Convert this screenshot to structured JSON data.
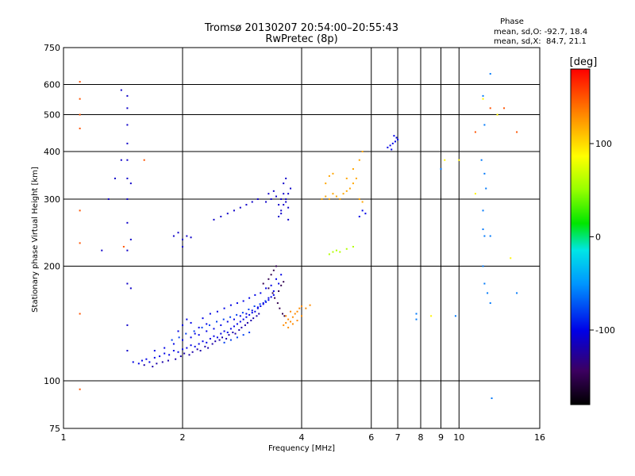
{
  "chart_data": {
    "type": "scatter",
    "title": "Tromsø 20130207 20:54:00–20:55:43",
    "subtitle": "RwPretec (8p)",
    "xlabel": "Frequency [MHz]",
    "ylabel": "Stationary phase Virtual Height [km]",
    "x_scale": "log",
    "y_scale": "log",
    "xlim": [
      1,
      16
    ],
    "ylim": [
      75,
      750
    ],
    "x_ticks": [
      1,
      2,
      4,
      6,
      8,
      10,
      16
    ],
    "x_ticks_minor": [
      7,
      9
    ],
    "y_ticks": [
      75,
      100,
      200,
      300,
      400,
      500,
      600,
      750
    ],
    "grid": true,
    "phase_box": {
      "heading": "Phase",
      "line_o": "mean, sd,O: -92.7, 18.4",
      "line_x": "mean, sd,X:  84.7, 21.1"
    },
    "colorbar": {
      "label": "[deg]",
      "range": [
        -180,
        180
      ],
      "ticks": [
        100,
        0,
        -100
      ]
    },
    "clusters_note": "approximate digitization of scatter echoes: x=frequency MHz, y=virtual height km, phase=deg",
    "clusters": [
      {
        "phase": -100,
        "points": [
          [
            1.5,
            112
          ],
          [
            1.55,
            111
          ],
          [
            1.58,
            113
          ],
          [
            1.62,
            114
          ],
          [
            1.65,
            112
          ],
          [
            1.7,
            115
          ],
          [
            1.75,
            116
          ],
          [
            1.8,
            118
          ],
          [
            1.85,
            117
          ],
          [
            1.9,
            120
          ],
          [
            1.95,
            119
          ],
          [
            2.0,
            121
          ],
          [
            2.05,
            122
          ],
          [
            2.1,
            124
          ],
          [
            2.15,
            123
          ],
          [
            2.2,
            125
          ],
          [
            2.25,
            127
          ],
          [
            2.3,
            126
          ],
          [
            2.35,
            129
          ],
          [
            2.4,
            131
          ],
          [
            2.45,
            130
          ],
          [
            2.5,
            133
          ],
          [
            2.55,
            135
          ],
          [
            2.6,
            134
          ],
          [
            2.65,
            137
          ],
          [
            2.7,
            139
          ],
          [
            2.75,
            141
          ],
          [
            2.8,
            143
          ],
          [
            2.85,
            145
          ],
          [
            2.9,
            147
          ],
          [
            2.95,
            149
          ],
          [
            3.0,
            151
          ],
          [
            3.05,
            152
          ],
          [
            3.1,
            155
          ],
          [
            3.15,
            157
          ],
          [
            3.2,
            159
          ],
          [
            3.25,
            161
          ],
          [
            3.3,
            163
          ],
          [
            3.35,
            166
          ],
          [
            3.4,
            168
          ],
          [
            1.7,
            120
          ],
          [
            1.8,
            122
          ],
          [
            1.9,
            125
          ],
          [
            2.0,
            128
          ],
          [
            2.1,
            130
          ],
          [
            2.2,
            132
          ],
          [
            2.3,
            135
          ],
          [
            2.4,
            137
          ],
          [
            2.5,
            140
          ],
          [
            2.6,
            143
          ],
          [
            2.7,
            145
          ],
          [
            2.8,
            148
          ],
          [
            2.9,
            150
          ],
          [
            3.0,
            153
          ],
          [
            3.1,
            156
          ],
          [
            3.2,
            160
          ],
          [
            3.3,
            165
          ],
          [
            3.4,
            172
          ],
          [
            3.5,
            180
          ],
          [
            3.55,
            190
          ],
          [
            2.0,
            140
          ],
          [
            2.1,
            142
          ],
          [
            2.2,
            138
          ],
          [
            2.3,
            141
          ],
          [
            1.95,
            135
          ],
          [
            2.05,
            145
          ],
          [
            2.15,
            133
          ],
          [
            2.25,
            146
          ],
          [
            2.35,
            150
          ],
          [
            2.45,
            152
          ],
          [
            2.55,
            155
          ],
          [
            2.65,
            158
          ],
          [
            2.75,
            160
          ],
          [
            2.85,
            162
          ],
          [
            2.95,
            165
          ],
          [
            3.05,
            168
          ],
          [
            3.15,
            170
          ],
          [
            3.25,
            175
          ],
          [
            3.35,
            178
          ],
          [
            3.45,
            185
          ]
        ]
      },
      {
        "phase": -120,
        "points": [
          [
            1.6,
            110
          ],
          [
            1.68,
            109
          ],
          [
            1.72,
            111
          ],
          [
            1.78,
            112
          ],
          [
            1.84,
            113
          ],
          [
            1.92,
            114
          ],
          [
            1.98,
            116
          ],
          [
            2.02,
            118
          ],
          [
            2.08,
            117
          ],
          [
            2.12,
            119
          ],
          [
            2.18,
            121
          ],
          [
            2.22,
            120
          ],
          [
            2.28,
            123
          ],
          [
            2.32,
            122
          ],
          [
            2.38,
            125
          ],
          [
            2.42,
            127
          ],
          [
            2.48,
            128
          ],
          [
            2.52,
            130
          ],
          [
            2.58,
            129
          ],
          [
            2.62,
            132
          ],
          [
            2.68,
            134
          ],
          [
            2.72,
            133
          ],
          [
            2.78,
            136
          ],
          [
            2.82,
            138
          ],
          [
            2.88,
            140
          ],
          [
            2.92,
            142
          ],
          [
            2.98,
            144
          ],
          [
            3.02,
            146
          ],
          [
            3.08,
            148
          ],
          [
            3.12,
            150
          ]
        ]
      },
      {
        "phase": -80,
        "points": [
          [
            1.88,
            128
          ],
          [
            1.96,
            130
          ],
          [
            2.04,
            133
          ],
          [
            2.14,
            135
          ],
          [
            2.24,
            138
          ],
          [
            2.34,
            140
          ],
          [
            2.44,
            143
          ],
          [
            2.54,
            145
          ],
          [
            2.64,
            147
          ],
          [
            2.74,
            149
          ],
          [
            2.84,
            151
          ],
          [
            2.94,
            154
          ],
          [
            3.04,
            157
          ],
          [
            3.14,
            159
          ],
          [
            3.24,
            162
          ],
          [
            2.55,
            126
          ],
          [
            2.65,
            128
          ],
          [
            2.75,
            130
          ],
          [
            2.85,
            132
          ],
          [
            2.95,
            134
          ]
        ]
      },
      {
        "phase": -150,
        "points": [
          [
            3.2,
            180
          ],
          [
            3.3,
            185
          ],
          [
            3.35,
            190
          ],
          [
            3.4,
            195
          ],
          [
            3.45,
            200
          ],
          [
            3.3,
            175
          ],
          [
            3.38,
            170
          ],
          [
            3.42,
            165
          ],
          [
            3.5,
            172
          ],
          [
            3.55,
            178
          ],
          [
            3.6,
            182
          ],
          [
            3.48,
            160
          ],
          [
            3.52,
            155
          ],
          [
            3.58,
            150
          ],
          [
            3.62,
            148
          ]
        ]
      },
      {
        "phase": 130,
        "points": [
          [
            3.6,
            140
          ],
          [
            3.65,
            142
          ],
          [
            3.7,
            145
          ],
          [
            3.75,
            143
          ],
          [
            3.8,
            147
          ],
          [
            3.85,
            150
          ],
          [
            3.9,
            152
          ],
          [
            3.95,
            155
          ],
          [
            4.0,
            157
          ],
          [
            4.1,
            155
          ],
          [
            4.2,
            158
          ],
          [
            3.7,
            138
          ],
          [
            3.8,
            141
          ],
          [
            3.9,
            144
          ],
          [
            4.0,
            148
          ],
          [
            3.65,
            148
          ],
          [
            3.75,
            152
          ]
        ]
      },
      {
        "phase": -110,
        "points": [
          [
            3.5,
            270
          ],
          [
            3.55,
            280
          ],
          [
            3.6,
            290
          ],
          [
            3.65,
            300
          ],
          [
            3.7,
            310
          ],
          [
            3.75,
            320
          ],
          [
            3.55,
            300
          ],
          [
            3.6,
            310
          ],
          [
            3.65,
            295
          ],
          [
            3.7,
            285
          ],
          [
            3.5,
            290
          ],
          [
            3.45,
            305
          ],
          [
            3.4,
            315
          ],
          [
            3.6,
            330
          ],
          [
            3.65,
            340
          ],
          [
            3.55,
            275
          ],
          [
            3.7,
            265
          ],
          [
            3.35,
            300
          ],
          [
            3.3,
            310
          ],
          [
            3.25,
            295
          ]
        ]
      },
      {
        "phase": 120,
        "points": [
          [
            4.5,
            300
          ],
          [
            4.6,
            305
          ],
          [
            4.7,
            300
          ],
          [
            4.8,
            310
          ],
          [
            4.9,
            305
          ],
          [
            5.0,
            300
          ],
          [
            5.1,
            310
          ],
          [
            5.2,
            315
          ],
          [
            5.3,
            320
          ],
          [
            5.4,
            330
          ],
          [
            5.5,
            340
          ],
          [
            5.6,
            300
          ],
          [
            5.7,
            295
          ],
          [
            4.6,
            330
          ],
          [
            4.7,
            345
          ],
          [
            4.8,
            350
          ],
          [
            5.2,
            340
          ],
          [
            5.4,
            360
          ],
          [
            5.6,
            380
          ],
          [
            5.7,
            400
          ]
        ]
      },
      {
        "phase": -100,
        "points": [
          [
            6.6,
            410
          ],
          [
            6.7,
            415
          ],
          [
            6.8,
            420
          ],
          [
            6.9,
            425
          ],
          [
            7.0,
            430
          ],
          [
            6.75,
            405
          ],
          [
            6.85,
            440
          ],
          [
            6.95,
            435
          ],
          [
            5.6,
            270
          ],
          [
            5.7,
            280
          ],
          [
            5.8,
            275
          ]
        ]
      },
      {
        "phase": 60,
        "points": [
          [
            4.7,
            215
          ],
          [
            4.8,
            218
          ],
          [
            4.9,
            220
          ],
          [
            5.0,
            218
          ],
          [
            5.2,
            222
          ],
          [
            5.4,
            225
          ]
        ]
      },
      {
        "phase": -110,
        "points": [
          [
            1.9,
            240
          ],
          [
            1.95,
            245
          ],
          [
            2.0,
            235
          ],
          [
            2.05,
            240
          ],
          [
            2.1,
            238
          ],
          [
            2.0,
            225
          ],
          [
            2.4,
            265
          ],
          [
            2.5,
            270
          ],
          [
            2.6,
            275
          ],
          [
            2.7,
            280
          ],
          [
            2.8,
            285
          ],
          [
            2.9,
            290
          ],
          [
            3.0,
            295
          ],
          [
            3.1,
            300
          ]
        ]
      },
      {
        "phase": -110,
        "points": [
          [
            1.4,
            580
          ],
          [
            1.45,
            560
          ],
          [
            1.45,
            520
          ],
          [
            1.45,
            470
          ],
          [
            1.45,
            420
          ],
          [
            1.45,
            380
          ],
          [
            1.45,
            340
          ],
          [
            1.45,
            300
          ],
          [
            1.45,
            260
          ],
          [
            1.45,
            220
          ],
          [
            1.45,
            180
          ],
          [
            1.45,
            140
          ],
          [
            1.45,
            120
          ],
          [
            1.4,
            380
          ],
          [
            1.35,
            340
          ],
          [
            1.3,
            300
          ],
          [
            1.25,
            220
          ],
          [
            1.48,
            330
          ],
          [
            1.48,
            235
          ],
          [
            1.48,
            175
          ]
        ]
      },
      {
        "phase": 150,
        "points": [
          [
            1.1,
            610
          ],
          [
            1.1,
            550
          ],
          [
            1.1,
            500
          ],
          [
            1.1,
            460
          ],
          [
            1.1,
            280
          ],
          [
            1.1,
            230
          ],
          [
            1.1,
            150
          ],
          [
            1.1,
            95
          ],
          [
            1.42,
            225
          ],
          [
            1.6,
            380
          ],
          [
            12.0,
            520
          ],
          [
            11.0,
            450
          ],
          [
            13.0,
            520
          ],
          [
            14.0,
            450
          ]
        ]
      },
      {
        "phase": -60,
        "points": [
          [
            11.5,
            560
          ],
          [
            11.6,
            470
          ],
          [
            11.4,
            380
          ],
          [
            11.6,
            350
          ],
          [
            11.7,
            320
          ],
          [
            11.5,
            280
          ],
          [
            11.6,
            240
          ],
          [
            11.5,
            200
          ],
          [
            11.6,
            180
          ],
          [
            11.8,
            170
          ],
          [
            12.0,
            640
          ],
          [
            12.0,
            240
          ],
          [
            11.5,
            250
          ],
          [
            12.0,
            160
          ],
          [
            12.1,
            90
          ],
          [
            14.0,
            170
          ],
          [
            9.0,
            360
          ],
          [
            9.8,
            148
          ],
          [
            7.8,
            150
          ],
          [
            7.8,
            145
          ]
        ]
      },
      {
        "phase": 90,
        "points": [
          [
            10.0,
            380
          ],
          [
            11.0,
            310
          ],
          [
            11.5,
            550
          ],
          [
            12.5,
            500
          ],
          [
            13.5,
            210
          ],
          [
            8.5,
            148
          ],
          [
            9.2,
            380
          ]
        ]
      }
    ]
  }
}
